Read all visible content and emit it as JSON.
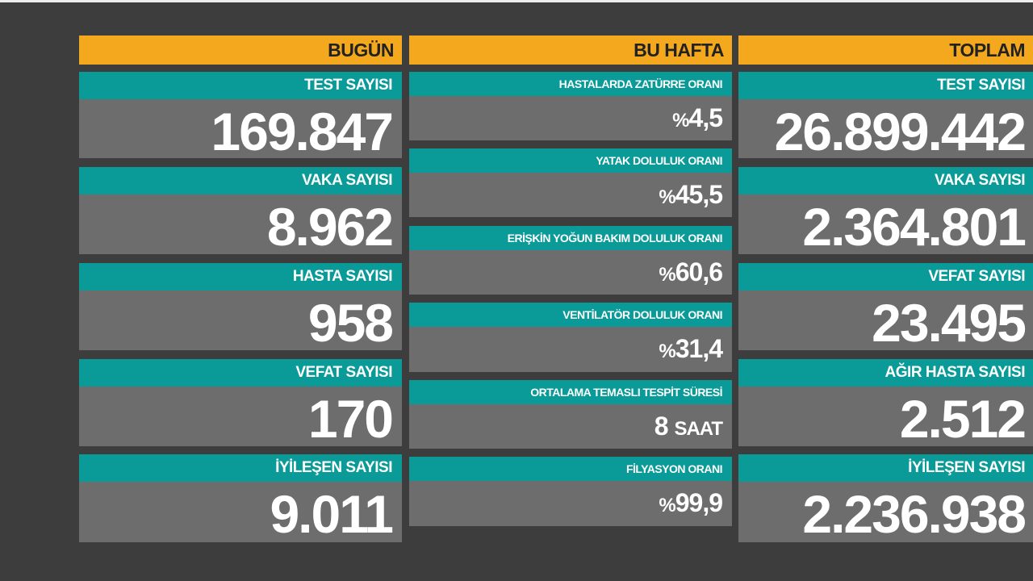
{
  "columns": {
    "today": {
      "header": "BUGÜN",
      "cards": [
        {
          "label": "TEST SAYISI",
          "value": "169.847"
        },
        {
          "label": "VAKA SAYISI",
          "value": "8.962"
        },
        {
          "label": "HASTA SAYISI",
          "value": "958"
        },
        {
          "label": "VEFAT SAYISI",
          "value": "170"
        },
        {
          "label": "İYİLEŞEN SAYISI",
          "value": "9.011"
        }
      ]
    },
    "week": {
      "header": "BU HAFTA",
      "cards": [
        {
          "label": "HASTALARDA ZATÜRRE ORANI",
          "prefix": "%",
          "value": "4,5"
        },
        {
          "label": "YATAK DOLULUK ORANI",
          "prefix": "%",
          "value": "45,5"
        },
        {
          "label": "ERİŞKİN YOĞUN BAKIM DOLULUK ORANI",
          "prefix": "%",
          "value": "60,6"
        },
        {
          "label": "VENTİLATÖR DOLULUK ORANI",
          "prefix": "%",
          "value": "31,4"
        },
        {
          "label": "ORTALAMA TEMASLI TESPİT SÜRESİ",
          "value": "8",
          "unit": "SAAT"
        },
        {
          "label": "FİLYASYON ORANI",
          "prefix": "%",
          "value": "99,9"
        }
      ]
    },
    "total": {
      "header": "TOPLAM",
      "cards": [
        {
          "label": "TEST SAYISI",
          "value": "26.899.442"
        },
        {
          "label": "VAKA SAYISI",
          "value": "2.364.801"
        },
        {
          "label": "VEFAT SAYISI",
          "value": "23.495"
        },
        {
          "label": "AĞIR HASTA SAYISI",
          "value": "2.512"
        },
        {
          "label": "İYİLEŞEN SAYISI",
          "value": "2.236.938"
        }
      ]
    }
  },
  "colors": {
    "background": "#3d3d3d",
    "header": "#f4a81d",
    "label_bar": "#0a9a98",
    "card": "#6d6d6d"
  }
}
